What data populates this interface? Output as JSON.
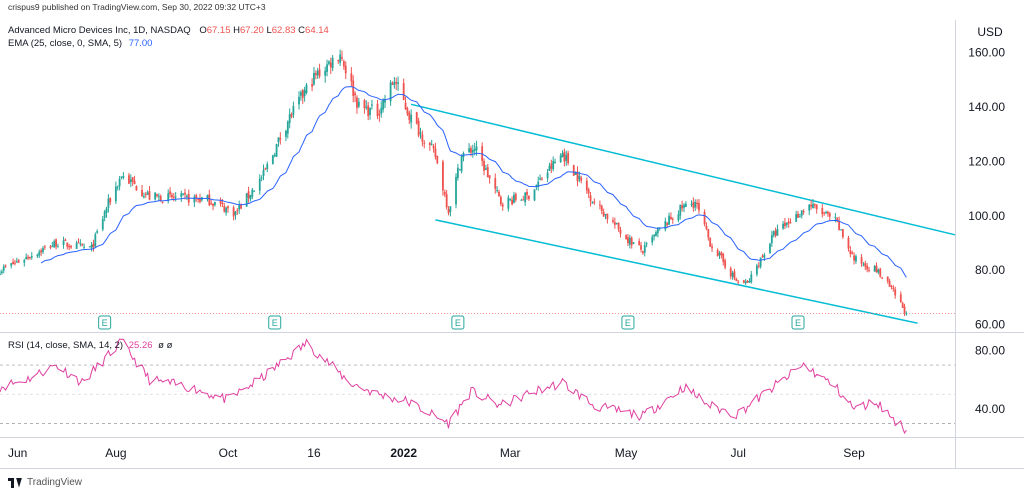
{
  "header": {
    "published": "crispus9 published on TradingView.com, Sep 30, 2022 09:32 UTC+3",
    "symbol": "Advanced Micro Devices Inc, 1D, NASDAQ",
    "ohlc": {
      "o_label": "O",
      "o": "67.15",
      "h_label": "H",
      "h": "67.20",
      "l_label": "L",
      "l": "62.83",
      "c_label": "C",
      "c": "64.14"
    },
    "ema_label": "EMA (25, close, 0, SMA, 5)",
    "ema_value": "77.00",
    "rsi_label": "RSI (14, close, SMA, 14, 2)",
    "rsi_value": "25.26",
    "rsi_extra": "ø ø"
  },
  "footer": {
    "brand": "TradingView"
  },
  "colors": {
    "up": "#26a69a",
    "down": "#ef5350",
    "ema": "#2962ff",
    "channel": "#00bcd4",
    "rsi": "#e040a0"
  },
  "chart_data": [
    {
      "type": "candlestick",
      "title": "Advanced Micro Devices Inc, 1D, NASDAQ",
      "ylabel": "USD",
      "ylim": [
        58,
        172
      ],
      "y_ticks": [
        "160.00",
        "140.00",
        "120.00",
        "100.00",
        "80.00",
        "60.00"
      ],
      "x_ticks": [
        "Jun",
        "Aug",
        "Oct",
        "16",
        "2022",
        "Mar",
        "May",
        "Jul",
        "Sep"
      ],
      "x_tick_dates": [
        "2021-06-01",
        "2021-08-02",
        "2021-10-01",
        "2021-11-16",
        "2022-01-03",
        "2022-03-01",
        "2022-05-02",
        "2022-07-01",
        "2022-09-01"
      ],
      "x_range": [
        "2021-06-01",
        "2022-10-25"
      ],
      "grid": false,
      "price_anchors": [
        [
          "2021-06-01",
          80
        ],
        [
          "2021-07-01",
          90
        ],
        [
          "2021-07-20",
          88
        ],
        [
          "2021-07-28",
          103
        ],
        [
          "2021-08-05",
          115
        ],
        [
          "2021-08-20",
          107
        ],
        [
          "2021-09-20",
          106
        ],
        [
          "2021-10-05",
          101
        ],
        [
          "2021-10-20",
          115
        ],
        [
          "2021-11-02",
          135
        ],
        [
          "2021-11-15",
          150
        ],
        [
          "2021-11-30",
          160
        ],
        [
          "2021-12-10",
          140
        ],
        [
          "2021-12-20",
          138
        ],
        [
          "2021-12-29",
          150
        ],
        [
          "2022-01-06",
          137
        ],
        [
          "2022-01-20",
          122
        ],
        [
          "2022-01-27",
          102
        ],
        [
          "2022-02-03",
          122
        ],
        [
          "2022-02-10",
          125
        ],
        [
          "2022-02-24",
          105
        ],
        [
          "2022-03-10",
          107
        ],
        [
          "2022-03-29",
          123
        ],
        [
          "2022-04-15",
          105
        ],
        [
          "2022-05-02",
          92
        ],
        [
          "2022-05-11",
          87
        ],
        [
          "2022-05-20",
          95
        ],
        [
          "2022-06-01",
          103
        ],
        [
          "2022-06-08",
          105
        ],
        [
          "2022-06-16",
          90
        ],
        [
          "2022-06-30",
          76
        ],
        [
          "2022-07-06",
          75
        ],
        [
          "2022-07-20",
          93
        ],
        [
          "2022-08-08",
          104
        ],
        [
          "2022-08-22",
          98
        ],
        [
          "2022-09-01",
          84
        ],
        [
          "2022-09-13",
          80
        ],
        [
          "2022-09-22",
          72
        ],
        [
          "2022-09-29",
          64.14
        ]
      ],
      "ema": {
        "name": "EMA (25, close, 0, SMA, 5)",
        "last": 77.0
      },
      "channel": {
        "upper": [
          [
            "2022-01-07",
            141
          ],
          [
            "2022-10-25",
            93
          ]
        ],
        "lower": [
          [
            "2022-01-20",
            98.5
          ],
          [
            "2022-10-05",
            60.5
          ]
        ]
      },
      "last_price_line": 64.14,
      "earnings_markers": {
        "label": "E",
        "dates": [
          "2021-07-27",
          "2021-10-26",
          "2022-02-01",
          "2022-05-03",
          "2022-08-02"
        ]
      }
    },
    {
      "type": "line",
      "title": "RSI (14, close, SMA, 14, 2)",
      "ylim": [
        22,
        92
      ],
      "y_ticks": [
        "80.00",
        "40.00"
      ],
      "levels": [
        70,
        50,
        30
      ],
      "rsi_anchors": [
        [
          "2021-06-01",
          55
        ],
        [
          "2021-06-15",
          60
        ],
        [
          "2021-07-01",
          70
        ],
        [
          "2021-07-15",
          58
        ],
        [
          "2021-07-30",
          78
        ],
        [
          "2021-08-05",
          86
        ],
        [
          "2021-08-20",
          60
        ],
        [
          "2021-09-10",
          55
        ],
        [
          "2021-10-01",
          46
        ],
        [
          "2021-10-20",
          62
        ],
        [
          "2021-11-05",
          78
        ],
        [
          "2021-11-12",
          85
        ],
        [
          "2021-11-25",
          70
        ],
        [
          "2021-12-05",
          58
        ],
        [
          "2021-12-20",
          50
        ],
        [
          "2022-01-05",
          45
        ],
        [
          "2022-01-27",
          30
        ],
        [
          "2022-02-08",
          52
        ],
        [
          "2022-02-24",
          42
        ],
        [
          "2022-03-10",
          50
        ],
        [
          "2022-03-29",
          58
        ],
        [
          "2022-04-15",
          42
        ],
        [
          "2022-05-11",
          35
        ],
        [
          "2022-06-02",
          55
        ],
        [
          "2022-06-16",
          42
        ],
        [
          "2022-06-30",
          36
        ],
        [
          "2022-07-20",
          55
        ],
        [
          "2022-08-05",
          70
        ],
        [
          "2022-08-22",
          55
        ],
        [
          "2022-09-01",
          40
        ],
        [
          "2022-09-13",
          45
        ],
        [
          "2022-09-22",
          33
        ],
        [
          "2022-09-29",
          25.26
        ]
      ],
      "last": 25.26
    }
  ]
}
